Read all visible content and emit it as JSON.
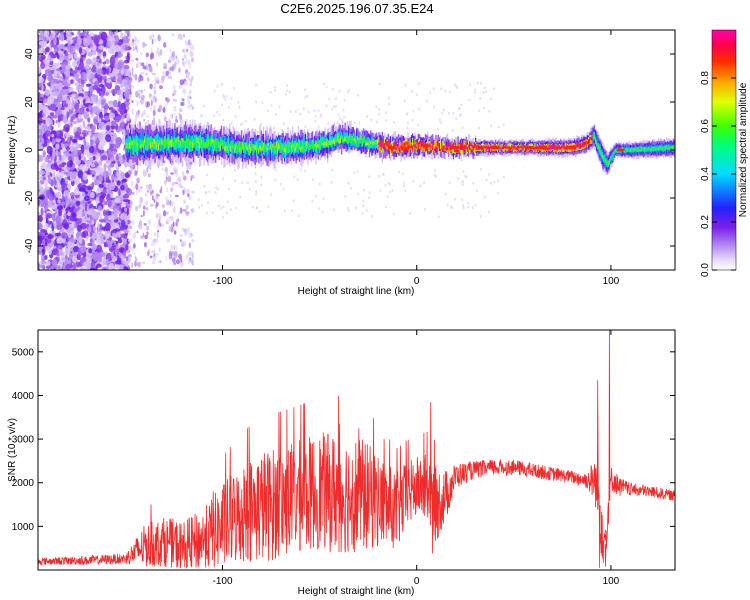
{
  "title": "C2E6.2025.196.07.35.E24",
  "colors": {
    "snr_line": "#ee2c2c",
    "background": "#ffffff",
    "axes": "#000000"
  },
  "chart_data": [
    {
      "type": "heatmap",
      "title": "C2E6.2025.196.07.35.E24",
      "xlabel": "Height of straight line (km)",
      "ylabel": "Frequency (Hz)",
      "xlim": [
        -195,
        133
      ],
      "ylim": [
        -50,
        50
      ],
      "x_ticks": [
        -100,
        0,
        100
      ],
      "x_tick_labels": [
        "-100",
        "0",
        "100"
      ],
      "y_ticks": [
        -40,
        -20,
        0,
        20,
        40
      ],
      "y_tick_labels": [
        "-40",
        "-20",
        "0",
        "20",
        "40"
      ],
      "grid": false,
      "colorbar": {
        "label": "Normalized spectral amplitude",
        "range": [
          0,
          1
        ],
        "ticks": [
          0.0,
          0.2,
          0.4,
          0.6,
          0.8
        ],
        "tick_labels": [
          "0.0",
          "0.2",
          "0.4",
          "0.6",
          "0.8"
        ],
        "colormap": "rainbow (white-lavender-violet-blue-cyan-green-yellow-orange-red-magenta)"
      },
      "features": {
        "noise_region_x": [
          -195,
          -148
        ],
        "sparse_noise_region_x": [
          -148,
          -115
        ],
        "ridge_centerline": [
          [
            -150,
            2
          ],
          [
            -130,
            3
          ],
          [
            -110,
            3
          ],
          [
            -90,
            1
          ],
          [
            -70,
            1
          ],
          [
            -50,
            2
          ],
          [
            -40,
            5
          ],
          [
            -30,
            4
          ],
          [
            -20,
            2
          ],
          [
            -10,
            1
          ],
          [
            0,
            2
          ],
          [
            20,
            1
          ],
          [
            50,
            1
          ],
          [
            80,
            1
          ],
          [
            88,
            3
          ],
          [
            91,
            6
          ],
          [
            95,
            -2
          ],
          [
            98,
            -6
          ],
          [
            102,
            0
          ],
          [
            110,
            0
          ],
          [
            133,
            1
          ]
        ],
        "ridge_halfwidth_hz": [
          [
            -150,
            8
          ],
          [
            -110,
            7
          ],
          [
            -60,
            6
          ],
          [
            -30,
            5
          ],
          [
            0,
            4
          ],
          [
            50,
            3
          ],
          [
            88,
            4
          ],
          [
            95,
            6
          ],
          [
            102,
            3
          ],
          [
            133,
            4
          ]
        ]
      }
    },
    {
      "type": "line",
      "xlabel": "Height of straight line (km)",
      "ylabel": "SNR (10 * v/v)",
      "xlim": [
        -195,
        133
      ],
      "ylim": [
        0,
        5500
      ],
      "x_ticks": [
        -100,
        0,
        100
      ],
      "x_tick_labels": [
        "-100",
        "0",
        "100"
      ],
      "y_ticks": [
        1000,
        2000,
        3000,
        4000,
        5000
      ],
      "y_tick_labels": [
        "1000",
        "2000",
        "3000",
        "4000",
        "5000"
      ],
      "grid": false,
      "series": [
        {
          "envelope": {
            "x": [
              -195,
              -170,
              -150,
              -140,
              -130,
              -120,
              -110,
              -100,
              -90,
              -80,
              -70,
              -60,
              -50,
              -40,
              -30,
              -20,
              -15,
              -10,
              -5,
              0,
              5,
              10,
              15,
              20,
              30,
              40,
              50,
              60,
              70,
              80,
              88,
              92,
              95,
              97,
              100,
              105,
              110,
              120,
              133
            ],
            "y": [
              200,
              220,
              260,
              550,
              650,
              500,
              700,
              1000,
              1300,
              1450,
              1550,
              1700,
              1800,
              1750,
              1750,
              1600,
              1450,
              1350,
              1700,
              1900,
              1900,
              1500,
              1700,
              2150,
              2300,
              2350,
              2350,
              2280,
              2200,
              2130,
              2050,
              2050,
              1200,
              600,
              2100,
              1900,
              1850,
              1800,
              1700
            ]
          },
          "amplitude": {
            "x": [
              -195,
              -150,
              -140,
              -110,
              -100,
              -80,
              -60,
              -40,
              -30,
              -20,
              -10,
              0,
              10,
              20,
              30,
              80,
              88,
              95,
              100,
              110,
              133
            ],
            "y": [
              80,
              120,
              500,
              700,
              1000,
              1300,
              1300,
              1400,
              1350,
              1100,
              900,
              700,
              900,
              300,
              200,
              150,
              200,
              900,
              300,
              150,
              120
            ]
          },
          "spikes": [
            {
              "x": -137,
              "y": 1500
            },
            {
              "x": -105,
              "y": 1800
            },
            {
              "x": -40,
              "y": 3350
            },
            {
              "x": -30,
              "y": 3250
            },
            {
              "x": -17,
              "y": 3000
            },
            {
              "x": 7,
              "y": 3850
            },
            {
              "x": 93,
              "y": 4350
            },
            {
              "x": 99,
              "y": 5500
            },
            {
              "x": 94,
              "y": 50
            },
            {
              "x": 97,
              "y": 80
            },
            {
              "x": 8,
              "y": 380
            }
          ]
        }
      ]
    }
  ]
}
